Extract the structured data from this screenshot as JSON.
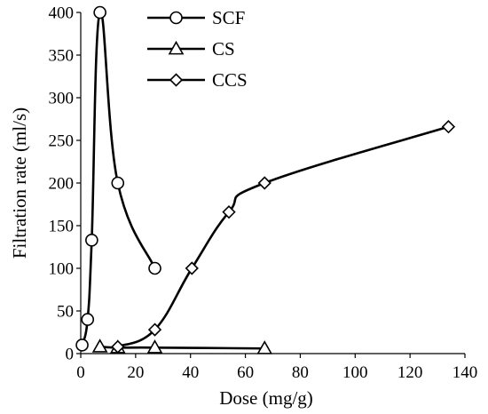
{
  "chart_data": {
    "type": "line",
    "xlabel": "Dose (mg/g)",
    "ylabel": "Filtration rate (ml/s)",
    "xlim": [
      0,
      140
    ],
    "ylim": [
      0,
      400
    ],
    "xticks": [
      0,
      20,
      40,
      60,
      80,
      100,
      120,
      140
    ],
    "yticks": [
      0,
      50,
      100,
      150,
      200,
      250,
      300,
      350,
      400
    ],
    "grid": false,
    "legend": "top-center",
    "series": [
      {
        "name": "SCF",
        "marker": "circle",
        "points": [
          [
            0.5,
            10
          ],
          [
            2.5,
            40
          ],
          [
            4,
            133
          ],
          [
            7,
            400
          ],
          [
            13.5,
            200
          ],
          [
            27,
            100
          ]
        ]
      },
      {
        "name": "CS",
        "marker": "triangle",
        "points": [
          [
            7,
            8
          ],
          [
            13.5,
            7
          ],
          [
            27,
            7
          ],
          [
            67,
            6
          ]
        ]
      },
      {
        "name": "CCS",
        "marker": "diamond",
        "points": [
          [
            13.5,
            8
          ],
          [
            27,
            28
          ],
          [
            40.5,
            100
          ],
          [
            54,
            166
          ],
          [
            67,
            200
          ],
          [
            134,
            266
          ]
        ]
      }
    ]
  }
}
